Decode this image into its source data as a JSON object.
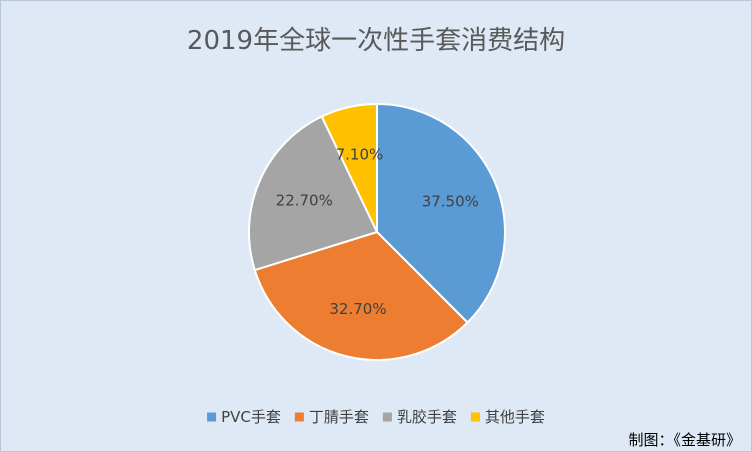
{
  "chart_data": {
    "type": "pie",
    "title": "2019年全球一次性手套消费结构",
    "categories": [
      "PVC手套",
      "丁腈手套",
      "乳胶手套",
      "其他手套"
    ],
    "values": [
      37.5,
      32.7,
      22.7,
      7.1
    ],
    "labels": [
      "37.50%",
      "32.70%",
      "22.70%",
      "7.10%"
    ],
    "colors": [
      "#5b9bd5",
      "#ed7d31",
      "#a5a5a5",
      "#ffc000"
    ],
    "legend_position": "bottom",
    "start_angle_deg": 0,
    "direction": "clockwise"
  },
  "credit": "制图：《金基研》"
}
